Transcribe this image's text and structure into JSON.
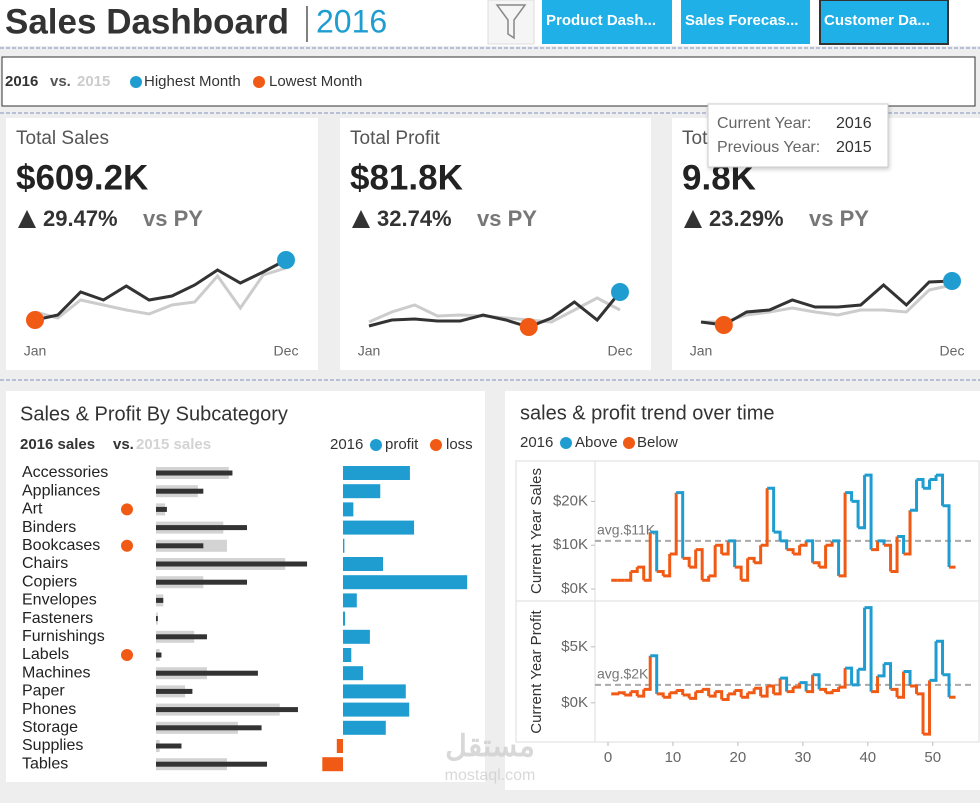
{
  "header": {
    "title": "Sales Dashboard",
    "year": "2016",
    "buttons": [
      "Product Dash...",
      "Sales Forecas...",
      "Customer Da..."
    ]
  },
  "legend_bar": {
    "current": "2016",
    "vs": "vs.",
    "previous": "2015",
    "highest": {
      "label": "Highest Month",
      "color": "#1f9dd0"
    },
    "lowest": {
      "label": "Lowest Month",
      "color": "#f05a14"
    }
  },
  "tooltip": {
    "rows": [
      {
        "label": "Current Year:",
        "value": "2016"
      },
      {
        "label": "Previous Year:",
        "value": "2015"
      }
    ]
  },
  "kpis": [
    {
      "title": "Total Sales",
      "value": "$609.2K",
      "change": "29.47%",
      "vs": "vs PY"
    },
    {
      "title": "Total Profit",
      "value": "$81.8K",
      "change": "32.74%",
      "vs": "vs PY"
    },
    {
      "title": "Tot",
      "value": "9.8K",
      "change": "23.29%",
      "vs": "vs PY"
    }
  ],
  "chart_data": [
    {
      "type": "sparkline",
      "categories": [
        "Jan",
        null,
        null,
        null,
        null,
        null,
        null,
        null,
        null,
        null,
        null,
        "Dec"
      ],
      "series": [
        {
          "name": "2015",
          "color": "#cccccc",
          "values": [
            28,
            22,
            40,
            35,
            30,
            26,
            35,
            38,
            64,
            32,
            65,
            72
          ]
        },
        {
          "name": "2016",
          "color": "#333333",
          "values": [
            20,
            25,
            48,
            40,
            54,
            40,
            44,
            55,
            70,
            57,
            68,
            80
          ]
        }
      ]
    },
    {
      "type": "sparkline",
      "categories": [
        "Jan",
        null,
        null,
        null,
        null,
        null,
        null,
        null,
        null,
        null,
        null,
        "Dec"
      ],
      "series": [
        {
          "name": "2015",
          "color": "#cccccc",
          "values": [
            18,
            28,
            35,
            24,
            25,
            24,
            22,
            20,
            18,
            30,
            42,
            30
          ]
        },
        {
          "name": "2016",
          "color": "#333333",
          "values": [
            14,
            20,
            21,
            19,
            19,
            25,
            20,
            13,
            22,
            38,
            20,
            48
          ]
        }
      ]
    },
    {
      "type": "sparkline",
      "categories": [
        "Jan",
        null,
        null,
        null,
        null,
        null,
        null,
        null,
        null,
        null,
        null,
        "Dec"
      ],
      "series": [
        {
          "name": "2015",
          "color": "#cccccc",
          "values": [
            18,
            18,
            25,
            28,
            32,
            28,
            25,
            30,
            30,
            28,
            50,
            55
          ]
        },
        {
          "name": "2016",
          "color": "#333333",
          "values": [
            18,
            15,
            28,
            30,
            40,
            33,
            33,
            35,
            55,
            35,
            58,
            59
          ]
        }
      ]
    },
    {
      "type": "subcategory",
      "title": "Sales & Profit By Subcategory",
      "vs": "vs.",
      "categories": [
        "Accessories",
        "Appliances",
        "Art",
        "Binders",
        "Bookcases",
        "Chairs",
        "Copiers",
        "Envelopes",
        "Fasteners",
        "Furnishings",
        "Labels",
        "Machines",
        "Paper",
        "Phones",
        "Storage",
        "Supplies",
        "Tables"
      ],
      "series": [
        {
          "name": "2015 sales",
          "color": "#d3d3d3",
          "values": [
            40,
            23,
            5,
            37,
            39,
            71,
            26,
            4,
            1,
            21,
            2,
            28,
            16,
            68,
            45,
            2,
            39
          ]
        },
        {
          "name": "2016 sales",
          "color": "#333333",
          "values": [
            42,
            26,
            6,
            50,
            26,
            83,
            50,
            4,
            1,
            28,
            3,
            56,
            20,
            78,
            58,
            14,
            61
          ]
        }
      ],
      "profit_legend": {
        "title": "2016",
        "profit": {
          "label": "profit",
          "color": "#1f9dd0"
        },
        "loss": {
          "label": "loss",
          "color": "#f05a14"
        }
      },
      "profit": [
        9.7,
        5.4,
        1.5,
        10.3,
        0.2,
        5.8,
        18.0,
        2.0,
        0.3,
        3.9,
        1.2,
        2.9,
        9.1,
        9.6,
        6.2,
        -0.9,
        -3.0
      ],
      "flags": [
        false,
        false,
        true,
        false,
        true,
        false,
        false,
        false,
        false,
        false,
        true,
        false,
        false,
        false,
        false,
        false,
        false
      ]
    },
    {
      "type": "step",
      "title": "sales & profit trend over time",
      "legend_title": "2016",
      "above": {
        "label": "Above",
        "color": "#1f9dd0"
      },
      "below": {
        "label": "Below",
        "color": "#f05a14"
      },
      "x": [
        1,
        2,
        3,
        4,
        5,
        6,
        7,
        8,
        9,
        10,
        11,
        12,
        13,
        14,
        15,
        16,
        17,
        18,
        19,
        20,
        21,
        22,
        23,
        24,
        25,
        26,
        27,
        28,
        29,
        30,
        31,
        32,
        33,
        34,
        35,
        36,
        37,
        38,
        39,
        40,
        41,
        42,
        43,
        44,
        45,
        46,
        47,
        48,
        49,
        50,
        51,
        52,
        53
      ],
      "xlim": [
        -2,
        56.5
      ],
      "xticks": [
        0,
        10,
        20,
        30,
        40,
        50
      ],
      "panels": [
        {
          "ylabel": "Current Year Sales",
          "ylim": [
            -2.5,
            29
          ],
          "yticks": [
            {
              "value": 0,
              "label": "$0K"
            },
            {
              "value": 10,
              "label": "$10K"
            },
            {
              "value": 20,
              "label": "$20K"
            }
          ],
          "average": {
            "value": 11,
            "label": "avg.$11K"
          },
          "values": [
            2,
            2,
            2,
            4,
            5,
            2,
            13,
            4,
            3,
            8,
            22,
            7,
            5,
            9,
            2,
            3,
            10,
            8,
            11,
            5,
            2,
            7,
            6,
            10,
            23,
            13,
            11,
            9,
            8,
            10,
            11,
            6,
            5,
            10,
            11,
            3,
            22,
            20,
            14,
            26,
            9,
            11,
            10,
            4,
            12,
            8,
            18,
            25,
            23,
            25,
            26,
            19,
            5
          ]
        },
        {
          "ylabel": "Current Year Profit",
          "ylim": [
            -3.5,
            9
          ],
          "yticks": [
            {
              "value": 0,
              "label": "$0K"
            },
            {
              "value": 5,
              "label": "$5K"
            }
          ],
          "average": {
            "value": 1.6,
            "label": "avg.$2K"
          },
          "values": [
            0.8,
            0.9,
            0.7,
            1.0,
            0.6,
            1.2,
            4.2,
            0.8,
            0.5,
            0.9,
            1.1,
            0.7,
            0.4,
            1.0,
            1.2,
            0.6,
            1.0,
            0.3,
            0.8,
            1.1,
            0.5,
            0.9,
            1.3,
            0.6,
            1.5,
            0.8,
            2.2,
            1.0,
            1.4,
            1.8,
            1.0,
            2.5,
            1.2,
            0.9,
            1.1,
            1.4,
            3.1,
            1.6,
            3.0,
            8.5,
            1.0,
            2.4,
            3.5,
            1.2,
            0.5,
            2.8,
            1.5,
            0.8,
            -2.8,
            2.0,
            5.5,
            2.5,
            0.5
          ]
        }
      ]
    }
  ],
  "watermark": {
    "arabic": "مستقل",
    "latin": "mostaql.com"
  }
}
